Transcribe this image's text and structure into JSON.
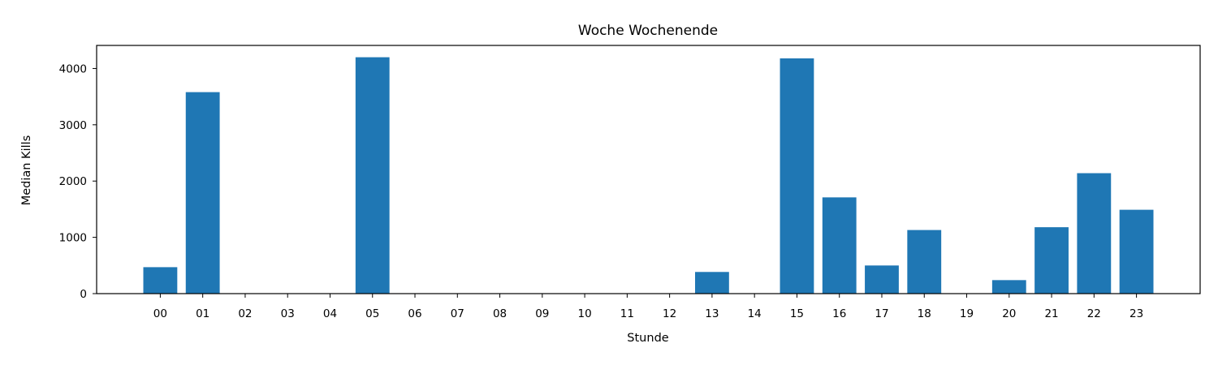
{
  "chart_data": {
    "type": "bar",
    "title": "Woche Wochenende",
    "xlabel": "Stunde",
    "ylabel": "Median Kills",
    "categories": [
      "00",
      "01",
      "02",
      "03",
      "04",
      "05",
      "06",
      "07",
      "08",
      "09",
      "10",
      "11",
      "12",
      "13",
      "14",
      "15",
      "16",
      "17",
      "18",
      "19",
      "20",
      "21",
      "22",
      "23"
    ],
    "values": [
      470,
      3580,
      0,
      0,
      0,
      4200,
      0,
      0,
      0,
      0,
      0,
      0,
      0,
      385,
      0,
      4180,
      1710,
      500,
      1130,
      0,
      240,
      1180,
      2140,
      1490
    ],
    "ylim": [
      0,
      4410
    ],
    "yticks": [
      0,
      1000,
      2000,
      3000,
      4000
    ],
    "grid": false,
    "bar_color": "#1f77b4"
  }
}
